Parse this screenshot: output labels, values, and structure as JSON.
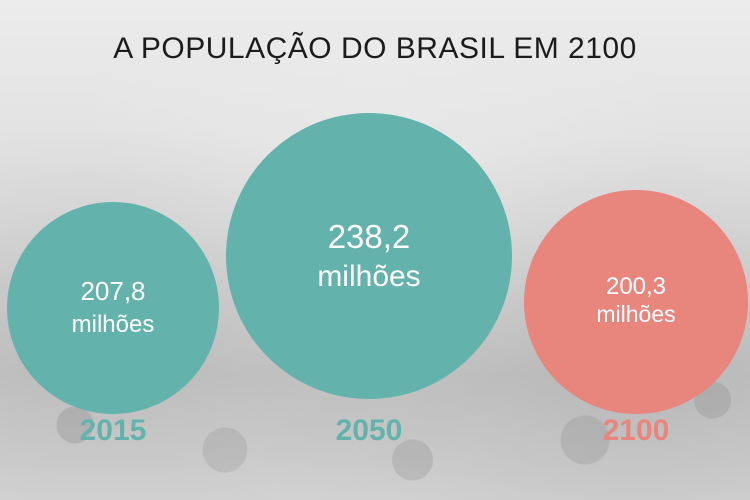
{
  "title": "A POPULAÇÃO DO BRASIL EM 2100",
  "chart_data": {
    "type": "bubble",
    "title": "A POPULAÇÃO DO BRASIL EM 2100",
    "categories": [
      "2015",
      "2050",
      "2100"
    ],
    "values": [
      207.8,
      238.2,
      200.3
    ],
    "value_labels": [
      "207,8",
      "238,2",
      "200,3"
    ],
    "unit_label": "milhões",
    "colors": [
      "#63b3ac",
      "#63b3ac",
      "#e8857d"
    ]
  }
}
